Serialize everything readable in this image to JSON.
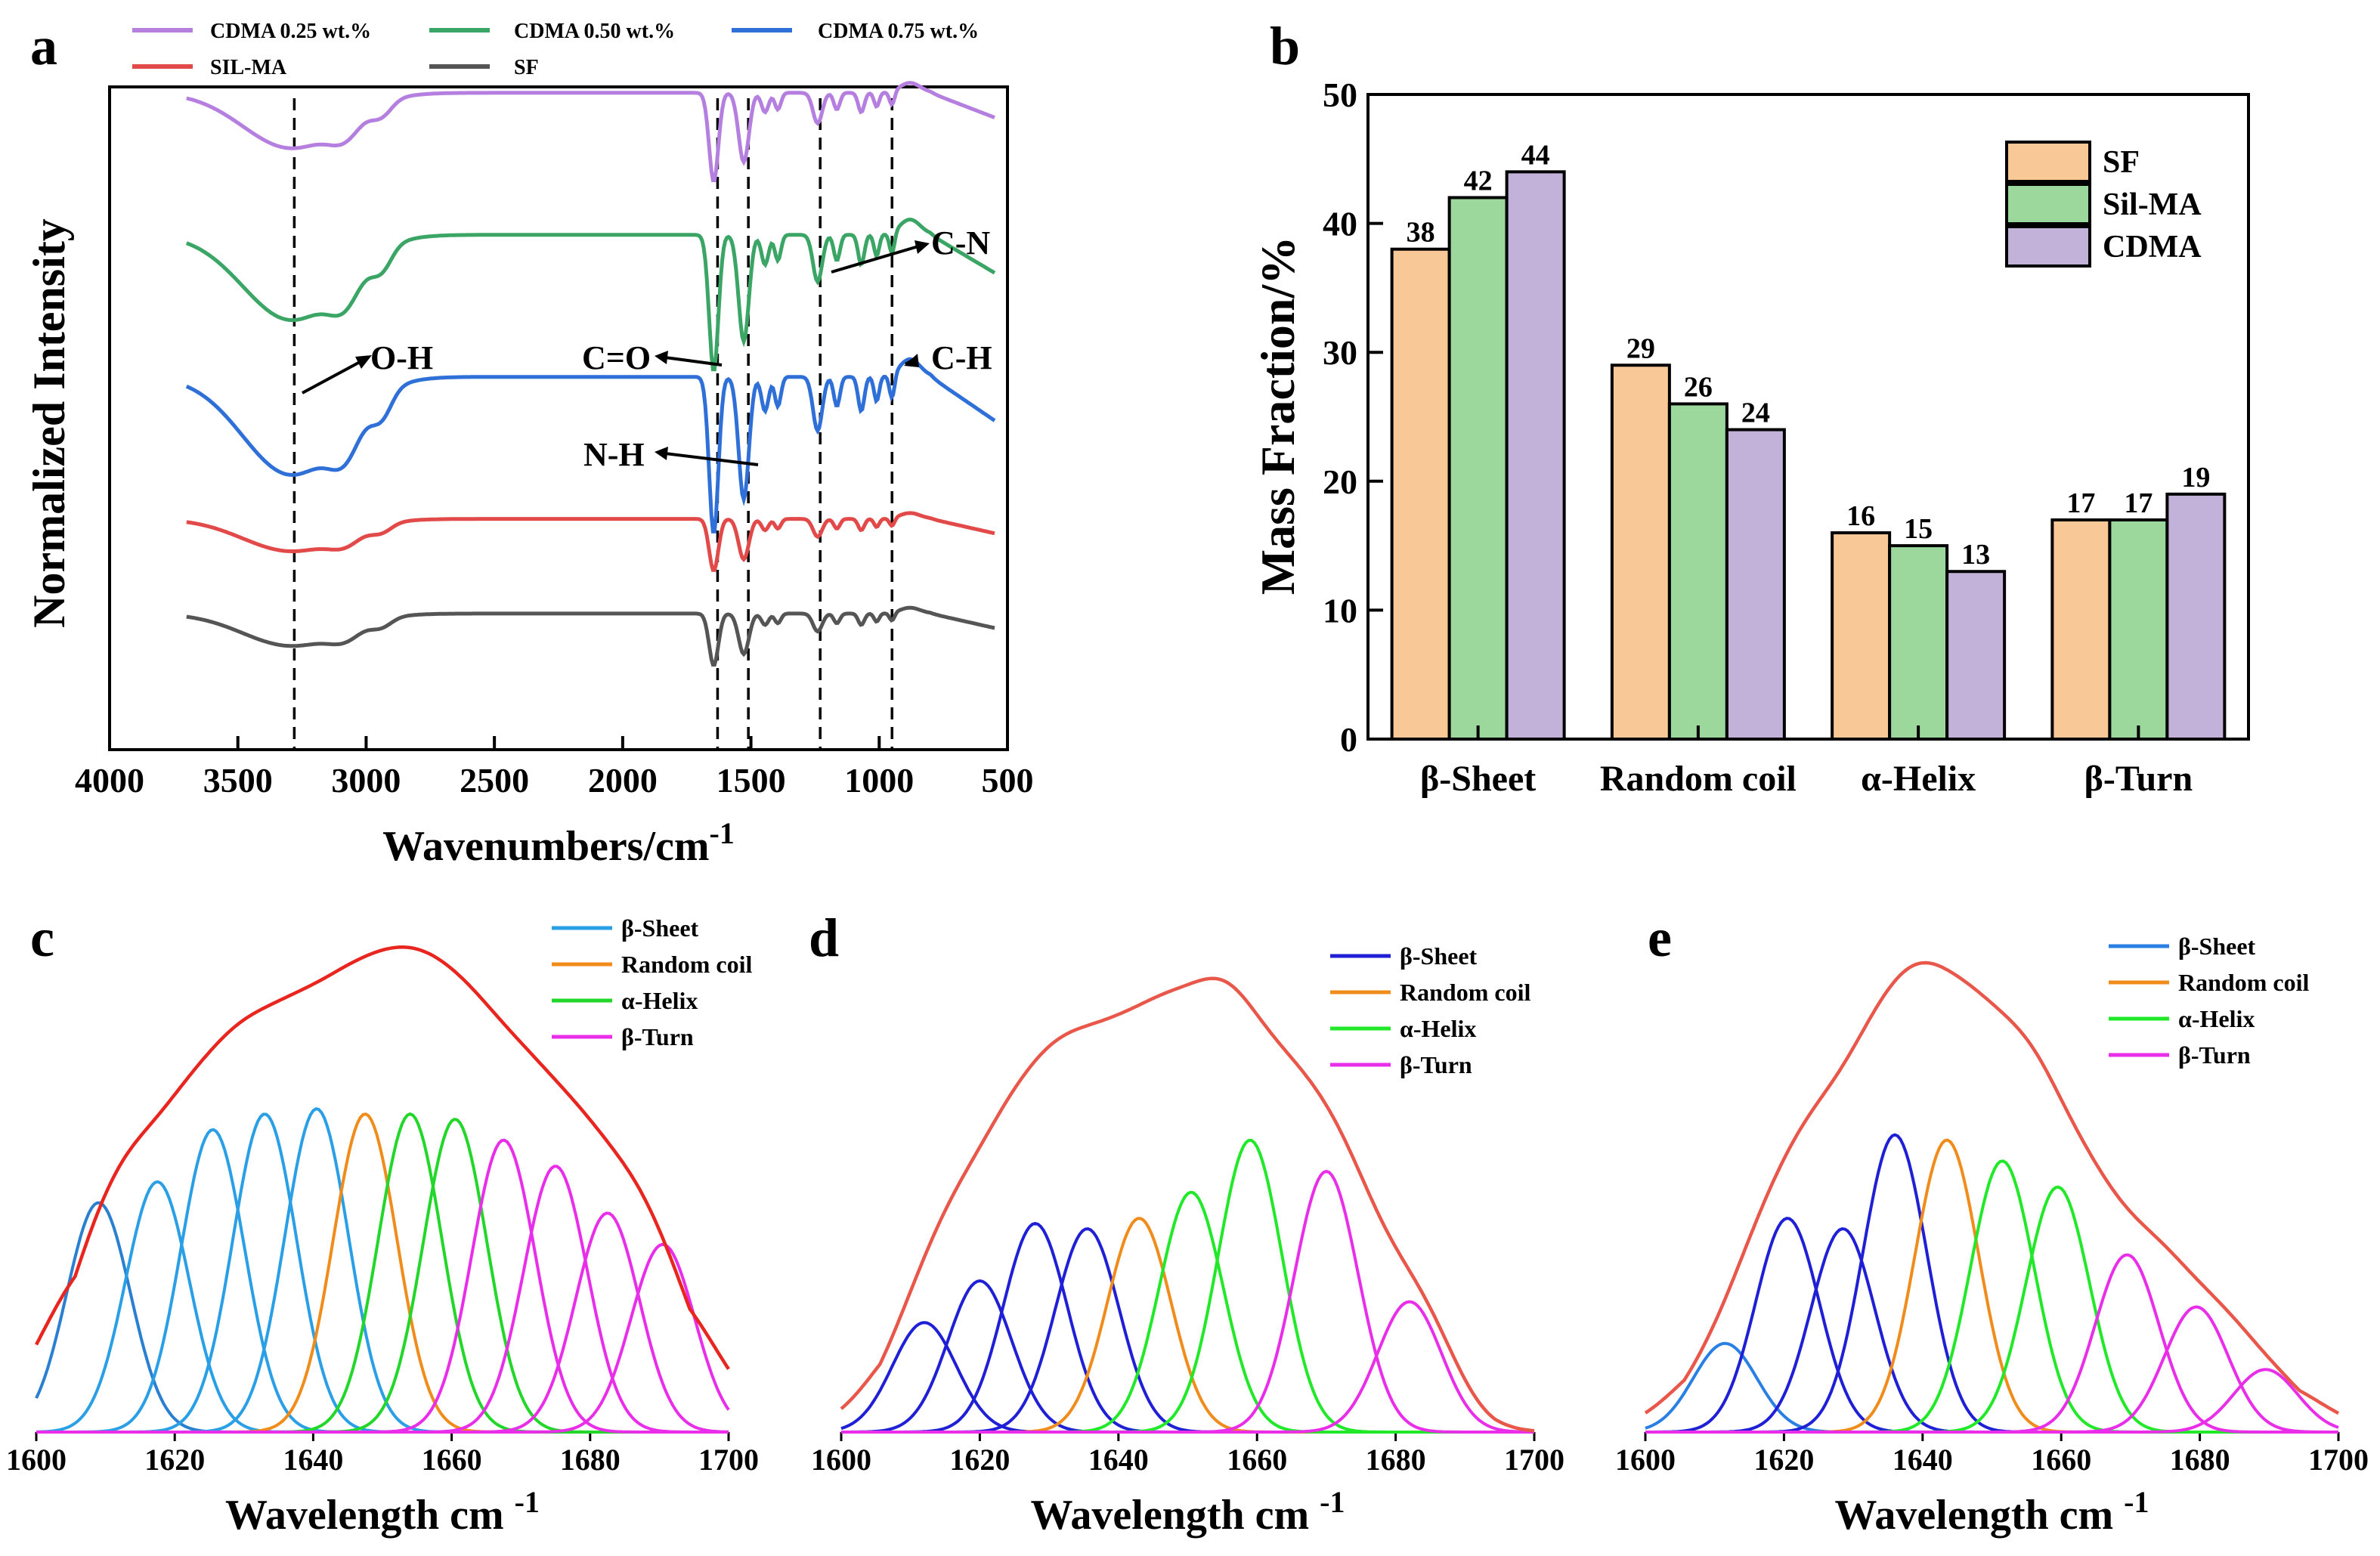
{
  "chart_data": [
    {
      "panel": "a",
      "type": "line",
      "xlabel": "Wavenumbers/cm",
      "xlabel_sup": "-1",
      "ylabel": "Normalized Intensity",
      "xlim": [
        4000,
        500
      ],
      "xticks": [
        "4000",
        "3500",
        "3000",
        "2500",
        "2000",
        "1500",
        "1000",
        "500"
      ],
      "legend": [
        {
          "name": "CDMA 0.25 wt.%",
          "color": "#b57fe0"
        },
        {
          "name": "CDMA 0.50 wt.%",
          "color": "#3aa565"
        },
        {
          "name": "CDMA 0.75 wt.%",
          "color": "#2f6fd8"
        },
        {
          "name": "SIL-MA",
          "color": "#e24a4a"
        },
        {
          "name": "SF",
          "color": "#555555"
        }
      ],
      "vlines": [
        3280,
        1630,
        1510,
        1230,
        950
      ],
      "annotations": [
        "O-H",
        "C=O",
        "N-H",
        "C-N",
        "C-H"
      ],
      "series": [
        {
          "name": "CDMA 0.25 wt.%",
          "color": "#b57fe0",
          "offset": 4.6,
          "scale": 0.65
        },
        {
          "name": "CDMA 0.50 wt.%",
          "color": "#3aa565",
          "offset": 3.4,
          "scale": 1.0
        },
        {
          "name": "CDMA 0.75 wt.%",
          "color": "#2f6fd8",
          "offset": 2.2,
          "scale": 1.15
        },
        {
          "name": "SIL-MA",
          "color": "#e24a4a",
          "offset": 1.0,
          "scale": 0.38
        },
        {
          "name": "SF",
          "color": "#555555",
          "offset": 0.2,
          "scale": 0.38
        }
      ]
    },
    {
      "panel": "b",
      "type": "bar",
      "ylabel": "Mass Fraction/%",
      "ylim": [
        0,
        50
      ],
      "yticks": [
        "0",
        "10",
        "20",
        "30",
        "40",
        "50"
      ],
      "categories": [
        "β-Sheet",
        "Random coil",
        "α-Helix",
        "β-Turn"
      ],
      "series": [
        {
          "name": "SF",
          "color": "#f9c897",
          "values": [
            38,
            29,
            16,
            17
          ],
          "labels": [
            "38",
            "29",
            "16",
            "17"
          ]
        },
        {
          "name": "Sil-MA",
          "color": "#9cd89c",
          "values": [
            42,
            26,
            15,
            17
          ],
          "labels": [
            "42",
            "26",
            "15",
            "17"
          ]
        },
        {
          "name": "CDMA",
          "color": "#c2b1d9",
          "values": [
            44,
            24,
            13,
            19
          ],
          "labels": [
            "44",
            "24",
            "13",
            "19"
          ]
        }
      ]
    },
    {
      "panel": "c",
      "type": "line",
      "xlabel": "Wavelength cm",
      "xlabel_sup": "-1",
      "xlim": [
        1600,
        1700
      ],
      "xticks": [
        "1600",
        "1620",
        "1640",
        "1660",
        "1680",
        "1700"
      ],
      "envelope_color": "#e8261f",
      "envelope_peak": 0.93,
      "legend": [
        {
          "name": "β-Sheet",
          "color": "#2a9fe5"
        },
        {
          "name": "Random coil",
          "color": "#f08c1c"
        },
        {
          "name": "α-Helix",
          "color": "#22d62a"
        },
        {
          "name": "β-Turn",
          "color": "#e82ee8"
        }
      ],
      "peaks": [
        {
          "center": 1609,
          "height": 0.44,
          "color": "#2a7fd0"
        },
        {
          "center": 1617.5,
          "height": 0.48,
          "color": "#2a9fe5"
        },
        {
          "center": 1625.5,
          "height": 0.58,
          "color": "#2a9fe5"
        },
        {
          "center": 1633,
          "height": 0.61,
          "color": "#2a9fe5"
        },
        {
          "center": 1640.5,
          "height": 0.62,
          "color": "#2a9fe5"
        },
        {
          "center": 1647.5,
          "height": 0.61,
          "color": "#f08c1c"
        },
        {
          "center": 1654,
          "height": 0.61,
          "color": "#22d62a"
        },
        {
          "center": 1660.5,
          "height": 0.6,
          "color": "#22d62a"
        },
        {
          "center": 1667.5,
          "height": 0.56,
          "color": "#e82ee8"
        },
        {
          "center": 1675,
          "height": 0.51,
          "color": "#e82ee8"
        },
        {
          "center": 1682.5,
          "height": 0.42,
          "color": "#e82ee8"
        },
        {
          "center": 1690.5,
          "height": 0.36,
          "color": "#e82ee8"
        }
      ]
    },
    {
      "panel": "d",
      "type": "line",
      "xlabel": "Wavelength cm",
      "xlabel_sup": "-1",
      "xlim": [
        1600,
        1700
      ],
      "xticks": [
        "1600",
        "1620",
        "1640",
        "1660",
        "1680",
        "1700"
      ],
      "envelope_color": "#e8574a",
      "envelope_peak": 0.87,
      "legend": [
        {
          "name": "β-Sheet",
          "color": "#1f1fd6"
        },
        {
          "name": "Random coil",
          "color": "#f08c1c"
        },
        {
          "name": "α-Helix",
          "color": "#22e82a"
        },
        {
          "name": "β-Turn",
          "color": "#e82ee8"
        }
      ],
      "peaks": [
        {
          "center": 1612,
          "height": 0.21,
          "color": "#1f1fd6"
        },
        {
          "center": 1620,
          "height": 0.29,
          "color": "#1f1fd6"
        },
        {
          "center": 1628,
          "height": 0.4,
          "color": "#1f1fd6"
        },
        {
          "center": 1635.5,
          "height": 0.39,
          "color": "#1f1fd6"
        },
        {
          "center": 1643,
          "height": 0.41,
          "color": "#f08c1c"
        },
        {
          "center": 1650.5,
          "height": 0.46,
          "color": "#22e82a"
        },
        {
          "center": 1659,
          "height": 0.56,
          "color": "#22e82a"
        },
        {
          "center": 1670,
          "height": 0.5,
          "color": "#e82ee8"
        },
        {
          "center": 1682,
          "height": 0.25,
          "color": "#e82ee8"
        }
      ]
    },
    {
      "panel": "e",
      "type": "line",
      "xlabel": "Wavelength cm",
      "xlabel_sup": "-1",
      "xlim": [
        1600,
        1700
      ],
      "xticks": [
        "1600",
        "1620",
        "1640",
        "1660",
        "1680",
        "1700"
      ],
      "envelope_color": "#e8574a",
      "envelope_peak": 0.9,
      "legend": [
        {
          "name": "β-Sheet",
          "color": "#2a7fe5"
        },
        {
          "name": "Random coil",
          "color": "#f08c1c"
        },
        {
          "name": "α-Helix",
          "color": "#22e82a"
        },
        {
          "name": "β-Turn",
          "color": "#e82ee8"
        }
      ],
      "peaks": [
        {
          "center": 1611.5,
          "height": 0.17,
          "color": "#2a7fe5"
        },
        {
          "center": 1620.5,
          "height": 0.41,
          "color": "#1f1fd6"
        },
        {
          "center": 1628.5,
          "height": 0.39,
          "color": "#1f1fd6"
        },
        {
          "center": 1636,
          "height": 0.57,
          "color": "#1f1fd6"
        },
        {
          "center": 1643.5,
          "height": 0.56,
          "color": "#f08c1c"
        },
        {
          "center": 1651.5,
          "height": 0.52,
          "color": "#22e82a"
        },
        {
          "center": 1659.5,
          "height": 0.47,
          "color": "#22e82a"
        },
        {
          "center": 1669.5,
          "height": 0.34,
          "color": "#e82ee8"
        },
        {
          "center": 1679.5,
          "height": 0.24,
          "color": "#e82ee8"
        },
        {
          "center": 1689.5,
          "height": 0.12,
          "color": "#e82ee8"
        }
      ]
    }
  ]
}
